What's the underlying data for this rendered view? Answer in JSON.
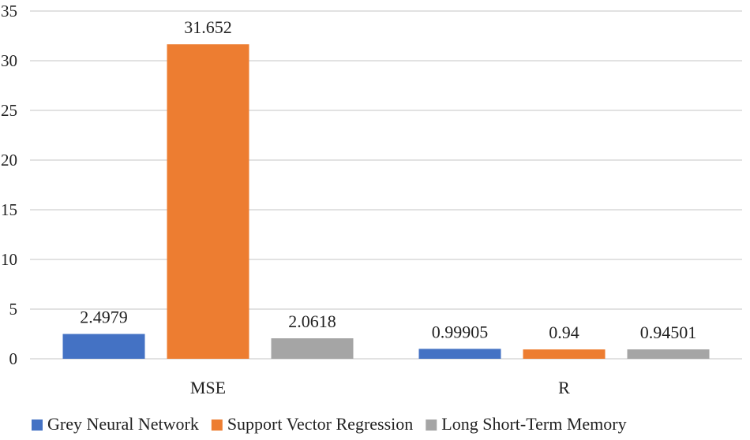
{
  "chart_data": {
    "type": "bar",
    "categories": [
      "MSE",
      "R"
    ],
    "series": [
      {
        "name": "Grey Neural Network",
        "color": "#4472c4",
        "values": [
          2.4979,
          0.99905
        ],
        "labels": [
          "2.4979",
          "0.99905"
        ]
      },
      {
        "name": "Support Vector Regression",
        "color": "#ed7d31",
        "values": [
          31.652,
          0.94
        ],
        "labels": [
          "31.652",
          "0.94"
        ]
      },
      {
        "name": "Long Short-Term Memory",
        "color": "#a5a5a5",
        "values": [
          2.0618,
          0.94501
        ],
        "labels": [
          "2.0618",
          "0.94501"
        ]
      }
    ],
    "ylim": [
      0,
      35
    ],
    "yticks": [
      0,
      5,
      10,
      15,
      20,
      25,
      30,
      35
    ],
    "grid": true,
    "legend_position": "bottom"
  }
}
